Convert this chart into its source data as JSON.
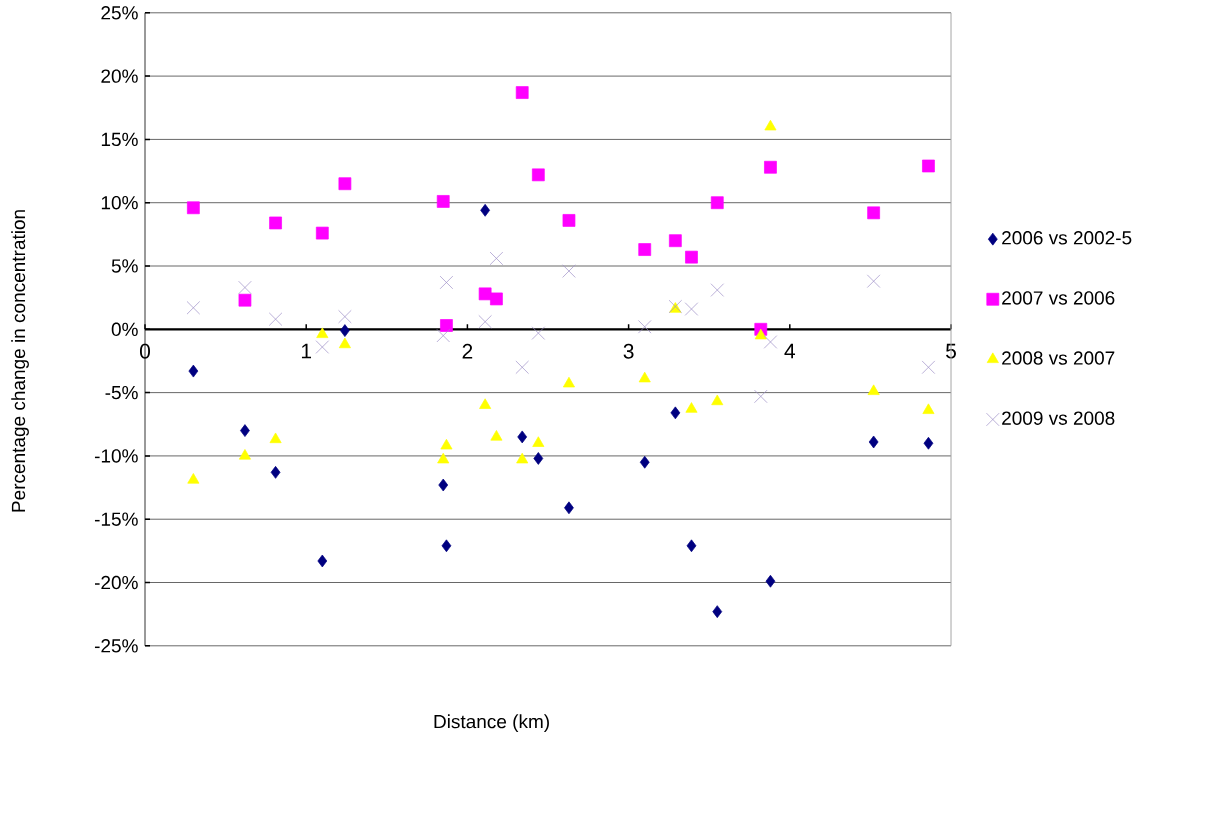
{
  "chart_data": {
    "type": "scatter",
    "xlabel": "Distance (km)",
    "ylabel": "Percentage change in concentration",
    "x": [
      0.3,
      0.62,
      0.81,
      1.1,
      1.24,
      1.85,
      1.87,
      2.11,
      2.18,
      2.34,
      2.44,
      2.63,
      3.1,
      3.29,
      3.39,
      3.55,
      3.82,
      3.88,
      4.52,
      4.86
    ],
    "series": [
      {
        "name": "2006 vs 2002-5",
        "color": "#000080",
        "marker": "diamond",
        "values": [
          -3.3,
          -8.0,
          -11.3,
          -18.3,
          -0.1,
          -12.3,
          -17.1,
          9.4,
          null,
          -8.5,
          -10.2,
          -14.1,
          -10.5,
          -6.6,
          -17.1,
          -22.3,
          null,
          -19.9,
          -8.9,
          -9.0
        ]
      },
      {
        "name": "2007 vs 2006",
        "color": "#ff00ff",
        "marker": "square",
        "values": [
          9.6,
          2.3,
          8.4,
          7.6,
          11.5,
          10.1,
          0.3,
          2.8,
          2.4,
          18.7,
          12.2,
          8.6,
          6.3,
          7.0,
          5.7,
          10.0,
          0.0,
          12.8,
          9.2,
          12.9
        ]
      },
      {
        "name": "2008 vs 2007",
        "color": "#ffff00",
        "marker": "triangle",
        "values": [
          -11.9,
          -10.0,
          -8.7,
          -0.4,
          -1.2,
          -10.3,
          -9.2,
          -6.0,
          -8.5,
          -10.3,
          -9.0,
          -4.3,
          -3.9,
          1.6,
          -6.3,
          -5.7,
          -0.5,
          16.0,
          -4.9,
          -6.4
        ]
      },
      {
        "name": "2009 vs 2008",
        "color": "#9d8fc7",
        "marker": "cross",
        "values": [
          1.7,
          3.3,
          0.8,
          -1.4,
          1.0,
          -0.5,
          3.7,
          0.6,
          5.6,
          -3.0,
          -0.3,
          4.6,
          0.2,
          1.8,
          1.6,
          3.1,
          -5.3,
          -1.0,
          3.8,
          -3.0
        ]
      }
    ],
    "xlim": [
      0,
      5
    ],
    "xticks": [
      0,
      1,
      2,
      3,
      4,
      5
    ],
    "ylim": [
      -25,
      25
    ],
    "yticks": [
      {
        "value": -25,
        "label": "-25%"
      },
      {
        "value": -20,
        "label": "-20%"
      },
      {
        "value": -15,
        "label": "-15%"
      },
      {
        "value": -10,
        "label": "-10%"
      },
      {
        "value": -5,
        "label": "-5%"
      },
      {
        "value": 0,
        "label": "0%"
      },
      {
        "value": 5,
        "label": "5%"
      },
      {
        "value": 10,
        "label": "10%"
      },
      {
        "value": 15,
        "label": "15%"
      },
      {
        "value": 20,
        "label": "20%"
      },
      {
        "value": 25,
        "label": "25%"
      }
    ],
    "grid": "y",
    "legend": "right"
  }
}
